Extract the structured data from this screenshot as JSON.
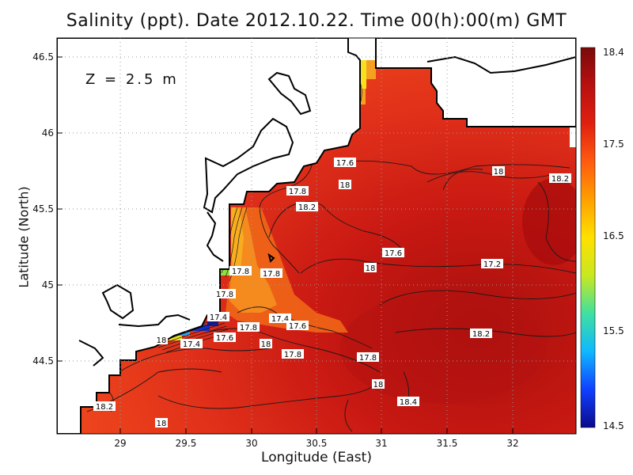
{
  "title": "Salinity (ppt). Date 2012.10.22. Time 00(h):00(m) GMT",
  "depth_label": "Z = 2.5 m",
  "xlabel": "Longitude (East)",
  "ylabel": "Latitude (North)",
  "x_ticks": [
    "29",
    "29.5",
    "30",
    "30.5",
    "31",
    "31.5",
    "32"
  ],
  "y_ticks": [
    "44.5",
    "45",
    "45.5",
    "46",
    "46.5"
  ],
  "colorbar": {
    "labels": [
      "18.4",
      "17.5",
      "16.5",
      "15.5",
      "14.5"
    ],
    "min": 14.5,
    "max": 18.4,
    "colors": [
      "#0a0a8c",
      "#1040ff",
      "#10b8ff",
      "#40e0a0",
      "#c8e820",
      "#ffe000",
      "#ffa000",
      "#ff5a10",
      "#e02010",
      "#b81010",
      "#7a0a0a"
    ]
  },
  "contour_labels": [
    "17.6",
    "17.8",
    "18",
    "18.2",
    "17.6",
    "17.8",
    "18",
    "17.8",
    "17.2",
    "17.8",
    "18",
    "17.4",
    "17.8",
    "17.4",
    "17.6",
    "17.8",
    "18",
    "17.6",
    "17.4",
    "18",
    "18.2",
    "17.8",
    "18.2",
    "18",
    "18.4",
    "18.2",
    "18"
  ],
  "colors": {
    "land": "#ffffff",
    "coastline": "#000000",
    "grid": "#9a9a9a"
  }
}
